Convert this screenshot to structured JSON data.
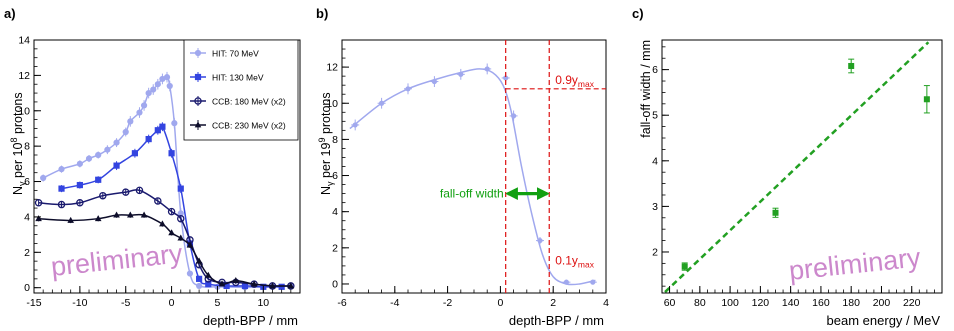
{
  "chart_data": [
    {
      "panel": "a)",
      "type": "line",
      "xlabel": "depth-BPP / mm",
      "ylabel_main": "N",
      "ylabel_sub": "γ",
      "ylabel_rest_a": " per 10",
      "ylabel_sup": "8",
      "ylabel_rest_b": " protons",
      "xlim": [
        -15,
        14
      ],
      "ylim": [
        -0.3,
        14
      ],
      "xticks": [
        -15,
        -10,
        -5,
        0,
        5,
        10
      ],
      "yticks": [
        0,
        2,
        4,
        6,
        8,
        10,
        12,
        14
      ],
      "watermark": "preliminary",
      "legend_position": "top-right",
      "series": [
        {
          "name": "HIT: 70 MeV",
          "color": "#a0a8ee",
          "marker": "circle-filled",
          "x": [
            -14,
            -12,
            -10,
            -9,
            -8,
            -7,
            -6,
            -5,
            -4.5,
            -3.5,
            -3,
            -2.5,
            -2,
            -1.5,
            -1,
            -0.5,
            -0.2,
            0.3,
            1,
            2,
            3,
            5,
            8,
            11,
            13
          ],
          "y": [
            6.2,
            6.7,
            7.0,
            7.3,
            7.5,
            7.8,
            8.2,
            8.8,
            9.4,
            9.9,
            10.3,
            11.0,
            11.2,
            11.5,
            11.8,
            11.9,
            11.4,
            9.3,
            4.2,
            0.8,
            0.1,
            0.05,
            0.02,
            0.05,
            0.1
          ],
          "err": [
            0.2,
            0.2,
            0.2,
            0.2,
            0.2,
            0.25,
            0.25,
            0.25,
            0.3,
            0.3,
            0.3,
            0.3,
            0.3,
            0.3,
            0.3,
            0.3,
            0.3,
            0.3,
            0.3,
            0.15,
            0.1,
            0.1,
            0.1,
            0.1,
            0.1
          ]
        },
        {
          "name": "HIT: 130 MeV",
          "color": "#3344e0",
          "marker": "square-filled",
          "x": [
            -12,
            -10,
            -8,
            -6,
            -4,
            -2.5,
            -1.5,
            -1,
            0,
            1,
            2,
            3,
            4,
            6,
            8,
            10,
            12
          ],
          "y": [
            5.6,
            5.8,
            6.1,
            6.9,
            7.6,
            8.4,
            8.9,
            9.1,
            7.6,
            5.6,
            2.5,
            0.5,
            0.2,
            0.1,
            0.1,
            0.05,
            0.05
          ],
          "err": [
            0.2,
            0.2,
            0.2,
            0.25,
            0.25,
            0.25,
            0.25,
            0.25,
            0.25,
            0.25,
            0.2,
            0.1,
            0.1,
            0.1,
            0.1,
            0.1,
            0.1
          ]
        },
        {
          "name": "CCB: 180 MeV (x2)",
          "color": "#1a1a6e",
          "marker": "circle-open",
          "x": [
            -14.5,
            -12,
            -10,
            -7.5,
            -5,
            -3.5,
            -1.5,
            0,
            1,
            2,
            3,
            4,
            5.5,
            7,
            9,
            11,
            13
          ],
          "y": [
            4.8,
            4.7,
            4.8,
            5.2,
            5.4,
            5.5,
            4.9,
            4.3,
            3.9,
            2.7,
            1.3,
            0.5,
            0.3,
            0.3,
            0.2,
            0.1,
            0.1
          ],
          "err": [
            0.15,
            0.15,
            0.15,
            0.15,
            0.15,
            0.15,
            0.15,
            0.15,
            0.15,
            0.15,
            0.15,
            0.1,
            0.1,
            0.1,
            0.1,
            0.1,
            0.1
          ]
        },
        {
          "name": "CCB: 230 MeV (x2)",
          "color": "#0d0d2a",
          "marker": "triangle-filled",
          "x": [
            -14.5,
            -11,
            -8,
            -6,
            -4.5,
            -3,
            -1,
            0,
            1,
            2,
            3,
            4,
            5.5,
            7,
            9,
            11,
            13
          ],
          "y": [
            3.9,
            3.8,
            3.9,
            4.1,
            4.1,
            4.1,
            3.6,
            3.1,
            2.8,
            2.4,
            1.5,
            0.7,
            0.2,
            0.4,
            0.2,
            0.1,
            0.1
          ],
          "err": [
            0.15,
            0.15,
            0.15,
            0.15,
            0.15,
            0.15,
            0.15,
            0.15,
            0.15,
            0.15,
            0.15,
            0.1,
            0.1,
            0.1,
            0.1,
            0.1,
            0.1
          ]
        }
      ]
    },
    {
      "panel": "b)",
      "type": "line",
      "xlabel": "depth-BPP / mm",
      "ylabel_main": "N",
      "ylabel_sub": "γ",
      "ylabel_rest_a": " per 19",
      "ylabel_sup": "9",
      "ylabel_rest_b": " protons",
      "xlim": [
        -6,
        4
      ],
      "ylim": [
        -0.5,
        13.5
      ],
      "xticks": [
        -6,
        -4,
        -2,
        0,
        2,
        4
      ],
      "yticks": [
        0,
        2,
        4,
        6,
        8,
        10,
        12
      ],
      "series": [
        {
          "name": "",
          "color": "#a0a8ee",
          "x": [
            -5.5,
            -4.5,
            -3.5,
            -2.5,
            -1.5,
            -0.5,
            0.2,
            0.5,
            1.5,
            2.5,
            3.5
          ],
          "y": [
            8.8,
            10.0,
            10.8,
            11.2,
            11.6,
            11.9,
            11.4,
            9.3,
            2.4,
            0.1,
            0.1
          ],
          "err": [
            0.3,
            0.3,
            0.3,
            0.3,
            0.3,
            0.3,
            0.3,
            0.3,
            0.2,
            0.1,
            0.1
          ]
        }
      ],
      "curve_x": [
        -5.7,
        -4.5,
        -3.5,
        -2.5,
        -1.5,
        -0.8,
        -0.3,
        0.1,
        0.4,
        0.8,
        1.2,
        1.6,
        2.0,
        2.5,
        3.0,
        3.6
      ],
      "curve_y": [
        8.6,
        10.0,
        10.8,
        11.3,
        11.7,
        11.9,
        11.7,
        11.0,
        9.6,
        6.5,
        3.8,
        1.6,
        0.4,
        0.0,
        0.0,
        0.2
      ],
      "vlines": [
        0.2,
        1.85
      ],
      "label_09_main": "0.9y",
      "label_09_sub": "max",
      "label_09_y": 10.8,
      "label_01_main": "0.1y",
      "label_01_sub": "max",
      "label_01_y": 1.3,
      "falloff_label": "fall-off width",
      "falloff_y": 5.0
    },
    {
      "panel": "c)",
      "type": "scatter",
      "xlabel": "beam energy / MeV",
      "ylabel": "fall-off width / mm",
      "xlim": [
        55,
        240
      ],
      "ylim": [
        1.1,
        6.65
      ],
      "xticks": [
        60,
        80,
        100,
        120,
        140,
        160,
        180,
        200,
        220
      ],
      "yticks": [
        2,
        3,
        4,
        5,
        6
      ],
      "watermark": "preliminary",
      "points_x": [
        70,
        130,
        180,
        230
      ],
      "points_y": [
        1.68,
        2.86,
        6.08,
        5.35
      ],
      "points_err": [
        0.08,
        0.1,
        0.15,
        0.3
      ],
      "fit_x": [
        57,
        231
      ],
      "fit_y": [
        1.12,
        6.6
      ],
      "color": "#22a022"
    }
  ]
}
